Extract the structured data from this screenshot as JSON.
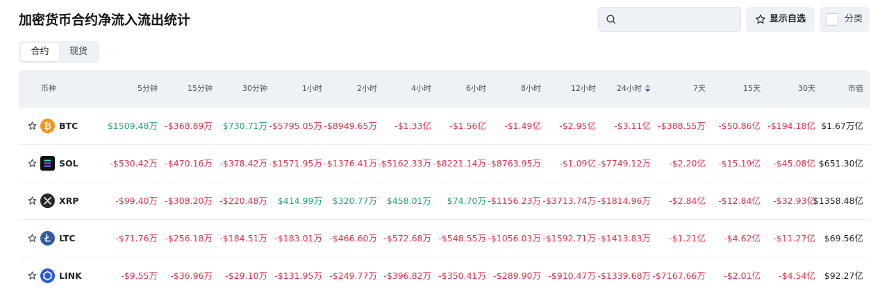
{
  "page": {
    "title": "加密货币合约净流入流出统计"
  },
  "toolbar": {
    "search_placeholder": "",
    "watchlist_label": "显示自选",
    "classify_label": "分类"
  },
  "tabs": [
    {
      "label": "合约",
      "active": true
    },
    {
      "label": "现货",
      "active": false
    }
  ],
  "table": {
    "columns": [
      "币种",
      "5分钟",
      "15分钟",
      "30分钟",
      "1小时",
      "2小时",
      "4小时",
      "6小时",
      "8小时",
      "12小时",
      "24小时",
      "7天",
      "15天",
      "30天",
      "市值"
    ],
    "sorted_column": "24小时",
    "rows": [
      {
        "symbol": "BTC",
        "icon": "btc-logo",
        "values": [
          "$1509.48万",
          "-$368.89万",
          "$730.71万",
          "-$5795.05万",
          "-$8949.65万",
          "-$1.33亿",
          "-$1.56亿",
          "-$1.49亿",
          "-$2.95亿",
          "-$3.11亿",
          "-$388.55万",
          "-$50.86亿",
          "-$194.18亿"
        ],
        "market_cap": "$1.67万亿"
      },
      {
        "symbol": "SOL",
        "icon": "sol-logo",
        "values": [
          "-$530.42万",
          "-$470.16万",
          "-$378.42万",
          "-$1571.95万",
          "-$1376.41万",
          "-$5162.33万",
          "-$8221.14万",
          "-$8763.95万",
          "-$1.09亿",
          "-$7749.12万",
          "-$2.20亿",
          "-$15.19亿",
          "-$45.08亿"
        ],
        "market_cap": "$651.30亿"
      },
      {
        "symbol": "XRP",
        "icon": "xrp-logo",
        "values": [
          "-$99.40万",
          "-$308.20万",
          "-$220.48万",
          "$414.99万",
          "$320.77万",
          "$458.01万",
          "$74.70万",
          "-$1156.23万",
          "-$3713.74万",
          "-$1814.96万",
          "-$2.84亿",
          "-$12.84亿",
          "-$32.93亿"
        ],
        "market_cap": "$1358.48亿"
      },
      {
        "symbol": "LTC",
        "icon": "ltc-logo",
        "values": [
          "-$71.76万",
          "-$256.18万",
          "-$184.51万",
          "-$183.01万",
          "-$466.60万",
          "-$572.68万",
          "-$548.55万",
          "-$1056.03万",
          "-$1592.71万",
          "-$1413.83万",
          "-$1.21亿",
          "-$4.62亿",
          "-$11.27亿"
        ],
        "market_cap": "$69.56亿"
      },
      {
        "symbol": "LINK",
        "icon": "link-logo",
        "values": [
          "-$9.55万",
          "-$36.96万",
          "-$29.10万",
          "-$131.95万",
          "-$249.77万",
          "-$396.82万",
          "-$350.41万",
          "-$289.90万",
          "-$910.47万",
          "-$1339.68万",
          "-$7167.66万",
          "-$2.01亿",
          "-$4.54亿"
        ],
        "market_cap": "$92.27亿"
      }
    ]
  },
  "colors": {
    "positive": "#21a37a",
    "negative": "#e5304a",
    "header_bg": "#eef1f5",
    "btc": "#f7931a",
    "sol": "#111111",
    "xrp": "#23292f",
    "ltc": "#345d9d",
    "link": "#2a5ada"
  }
}
